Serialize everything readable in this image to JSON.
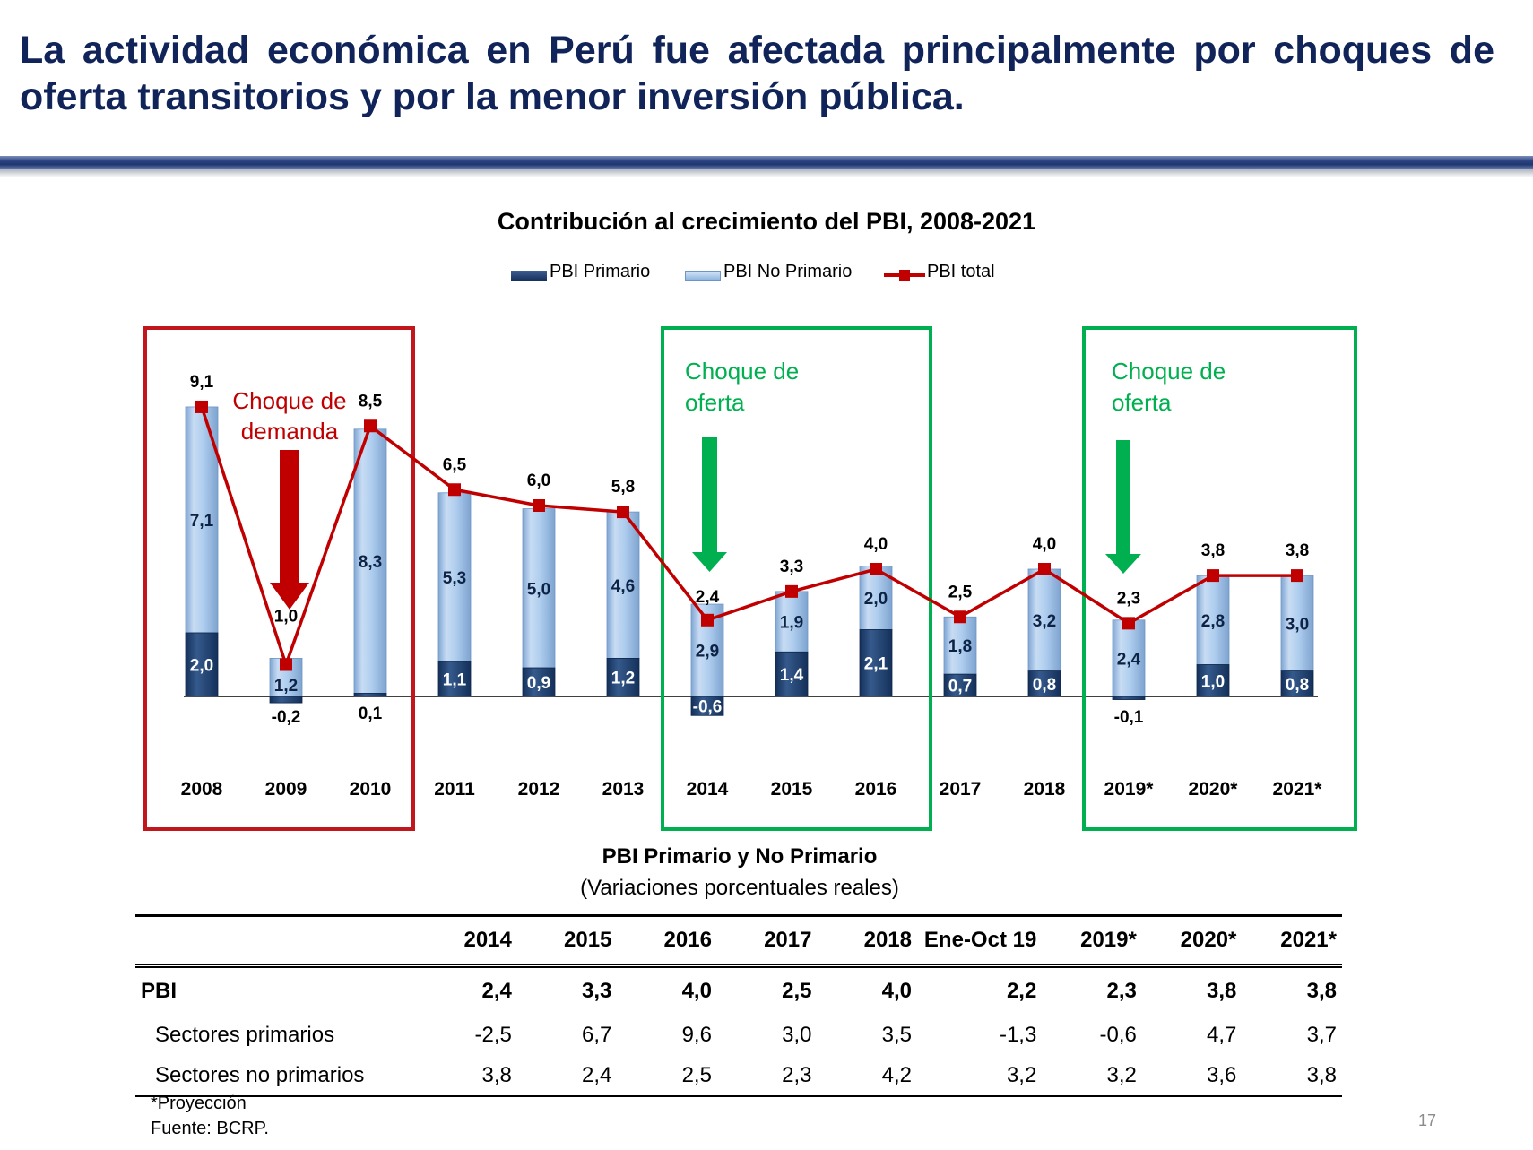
{
  "slide": {
    "title": "La actividad económica en Perú fue afectada principalmente por choques de oferta transitorios y por la menor inversión pública.",
    "page_number": "17"
  },
  "colors": {
    "title": "#10245a",
    "primario": "#1f3d6e",
    "no_primario": "#a6c8ec",
    "total_line": "#c00000",
    "demand_box": "#c0161c",
    "supply_box": "#00b050"
  },
  "chart_data": {
    "type": "bar",
    "stacked": true,
    "title": "Contribución al crecimiento del PBI, 2008-2021",
    "categories": [
      "2008",
      "2009",
      "2010",
      "2011",
      "2012",
      "2013",
      "2014",
      "2015",
      "2016",
      "2017",
      "2018",
      "2019*",
      "2020*",
      "2021*"
    ],
    "series": [
      {
        "name": "PBI Primario",
        "kind": "bar",
        "values": [
          2.0,
          -0.2,
          0.1,
          1.1,
          0.9,
          1.2,
          -0.6,
          1.4,
          2.1,
          0.7,
          0.8,
          -0.1,
          1.0,
          0.8
        ],
        "labels": [
          "2,0",
          "-0,2",
          "0,1",
          "1,1",
          "0,9",
          "1,2",
          "-0,6",
          "1,4",
          "2,1",
          "0,7",
          "0,8",
          "-0,1",
          "1,0",
          "0,8"
        ]
      },
      {
        "name": "PBI No Primario",
        "kind": "bar",
        "values": [
          7.1,
          1.2,
          8.3,
          5.3,
          5.0,
          4.6,
          2.9,
          1.9,
          2.0,
          1.8,
          3.2,
          2.4,
          2.8,
          3.0
        ],
        "labels": [
          "7,1",
          "1,2",
          "8,3",
          "5,3",
          "5,0",
          "4,6",
          "2,9",
          "1,9",
          "2,0",
          "1,8",
          "3,2",
          "2,4",
          "2,8",
          "3,0"
        ]
      },
      {
        "name": "PBI total",
        "kind": "line",
        "values": [
          9.1,
          1.0,
          8.5,
          6.5,
          6.0,
          5.8,
          2.4,
          3.3,
          4.0,
          2.5,
          4.0,
          2.3,
          3.8,
          3.8
        ],
        "labels": [
          "9,1",
          "1,0",
          "8,5",
          "6,5",
          "6,0",
          "5,8",
          "2,4",
          "3,3",
          "4,0",
          "2,5",
          "4,0",
          "2,3",
          "3,8",
          "3,8"
        ]
      }
    ],
    "annotations": [
      {
        "text": "Choque de demanda",
        "from": "2008",
        "to": "2010",
        "color": "red"
      },
      {
        "text": "Choque de oferta",
        "from": "2014",
        "to": "2016",
        "color": "green"
      },
      {
        "text": "Choque de oferta",
        "from": "2019*",
        "to": "2021*",
        "color": "green"
      }
    ],
    "annotation_lines": {
      "demand": [
        "Choque de",
        "demanda"
      ],
      "supply1": [
        "Choque de",
        "oferta"
      ],
      "supply2": [
        "Choque de",
        "oferta"
      ]
    },
    "ylim": [
      -0.6,
      9.1
    ],
    "legend_position": "top-center"
  },
  "table": {
    "title": "PBI Primario y No Primario",
    "subtitle": "(Variaciones porcentuales reales)",
    "columns": [
      "2014",
      "2015",
      "2016",
      "2017",
      "2018",
      "Ene-Oct 19",
      "2019*",
      "2020*",
      "2021*"
    ],
    "rows": [
      {
        "label": "PBI",
        "values": [
          "2,4",
          "3,3",
          "4,0",
          "2,5",
          "4,0",
          "2,2",
          "2,3",
          "3,8",
          "3,8"
        ]
      },
      {
        "label": "Sectores primarios",
        "values": [
          "-2,5",
          "6,7",
          "9,6",
          "3,0",
          "3,5",
          "-1,3",
          "-0,6",
          "4,7",
          "3,7"
        ]
      },
      {
        "label": "Sectores no primarios",
        "values": [
          "3,8",
          "2,4",
          "2,5",
          "2,3",
          "4,2",
          "3,2",
          "3,2",
          "3,6",
          "3,8"
        ]
      }
    ]
  },
  "notes": {
    "projection": "*Proyección",
    "source": "Fuente: BCRP."
  }
}
